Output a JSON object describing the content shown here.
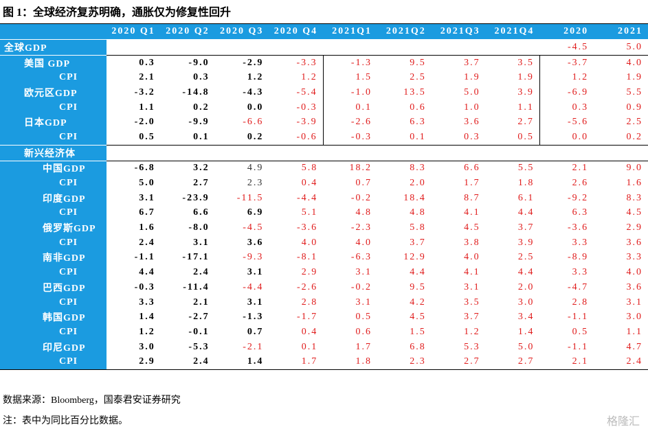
{
  "title": "图 1：全球经济复苏明确，通胀仅为修复性回升",
  "table": {
    "header": [
      null,
      "2020 Q1",
      "2020 Q2",
      "2020 Q3",
      "2020 Q4",
      "2021Q1",
      "2021Q2",
      "2021Q3",
      "2021Q4",
      "2020",
      "2021"
    ],
    "rows": [
      [
        "全球GDP",
        null,
        null,
        null,
        null,
        null,
        null,
        null,
        null,
        "-4.5",
        "5.0"
      ],
      [
        "美国 GDP",
        "0.3",
        "-9.0",
        "-2.9",
        "-3.3",
        "-1.3",
        "9.5",
        "3.7",
        "3.5",
        "-3.7",
        "4.0"
      ],
      [
        "CPI",
        "2.1",
        "0.3",
        "1.2",
        "1.2",
        "1.5",
        "2.5",
        "1.9",
        "1.9",
        "1.2",
        "1.9"
      ],
      [
        "欧元区GDP",
        "-3.2",
        "-14.8",
        "-4.3",
        "-5.4",
        "-1.0",
        "13.5",
        "5.0",
        "3.9",
        "-6.9",
        "5.5"
      ],
      [
        "CPI",
        "1.1",
        "0.2",
        "0.0",
        "-0.3",
        "0.1",
        "0.6",
        "1.0",
        "1.1",
        "0.3",
        "0.9"
      ],
      [
        "日本GDP",
        "-2.0",
        "-9.9",
        "-6.6",
        "-3.9",
        "-2.6",
        "6.3",
        "3.6",
        "2.7",
        "-5.6",
        "2.5"
      ],
      [
        "CPI",
        "0.5",
        "0.1",
        "0.2",
        "-0.6",
        "-0.3",
        "0.1",
        "0.3",
        "0.5",
        "0.0",
        "0.2"
      ],
      [
        "新兴经济体",
        null,
        null,
        null,
        null,
        null,
        null,
        null,
        null,
        null,
        null
      ],
      [
        "中国GDP",
        "-6.8",
        "3.2",
        "4.9",
        "5.8",
        "18.2",
        "8.3",
        "6.6",
        "5.5",
        "2.1",
        "9.0"
      ],
      [
        "CPI",
        "5.0",
        "2.7",
        "2.3",
        "0.4",
        "0.7",
        "2.0",
        "1.7",
        "1.8",
        "2.6",
        "1.6"
      ],
      [
        "印度GDP",
        "3.1",
        "-23.9",
        "-11.5",
        "-4.4",
        "-0.2",
        "18.4",
        "8.7",
        "6.1",
        "-9.2",
        "8.3"
      ],
      [
        "CPI",
        "6.7",
        "6.6",
        "6.9",
        "5.1",
        "4.8",
        "4.8",
        "4.1",
        "4.4",
        "6.3",
        "4.5"
      ],
      [
        "俄罗斯GDP",
        "1.6",
        "-8.0",
        "-4.5",
        "-3.6",
        "-2.3",
        "5.8",
        "4.5",
        "3.7",
        "-3.6",
        "2.9"
      ],
      [
        "CPI",
        "2.4",
        "3.1",
        "3.6",
        "4.0",
        "4.0",
        "3.7",
        "3.8",
        "3.9",
        "3.3",
        "3.6"
      ],
      [
        "南非GDP",
        "-1.1",
        "-17.1",
        "-9.3",
        "-8.1",
        "-6.3",
        "12.9",
        "4.0",
        "2.5",
        "-8.9",
        "3.3"
      ],
      [
        "CPI",
        "4.4",
        "2.4",
        "3.1",
        "2.9",
        "3.1",
        "4.4",
        "4.1",
        "4.4",
        "3.3",
        "4.0"
      ],
      [
        "巴西GDP",
        "-0.3",
        "-11.4",
        "-4.4",
        "-2.6",
        "-0.2",
        "9.5",
        "3.1",
        "2.0",
        "-4.7",
        "3.6"
      ],
      [
        "CPI",
        "3.3",
        "2.1",
        "3.1",
        "2.8",
        "3.1",
        "4.2",
        "3.5",
        "3.0",
        "2.8",
        "3.1"
      ],
      [
        "韩国GDP",
        "1.4",
        "-2.7",
        "-1.3",
        "-1.7",
        "0.5",
        "4.5",
        "3.7",
        "3.4",
        "-1.1",
        "3.0"
      ],
      [
        "CPI",
        "1.2",
        "-0.1",
        "0.7",
        "0.4",
        "0.6",
        "1.5",
        "1.2",
        "1.4",
        "0.5",
        "1.1"
      ],
      [
        "印尼GDP",
        "3.0",
        "-5.3",
        "-2.1",
        "0.1",
        "1.7",
        "6.8",
        "5.3",
        "5.0",
        "-1.1",
        "4.7"
      ],
      [
        "CPI",
        "2.9",
        "2.4",
        "1.4",
        "1.7",
        "1.8",
        "2.3",
        "2.7",
        "2.7",
        "2.1",
        "2.4"
      ]
    ]
  },
  "source": "数据来源：Bloomberg，国泰君安证券研究",
  "note": "注：表中为同比百分比数据。",
  "watermark": "格隆汇"
}
